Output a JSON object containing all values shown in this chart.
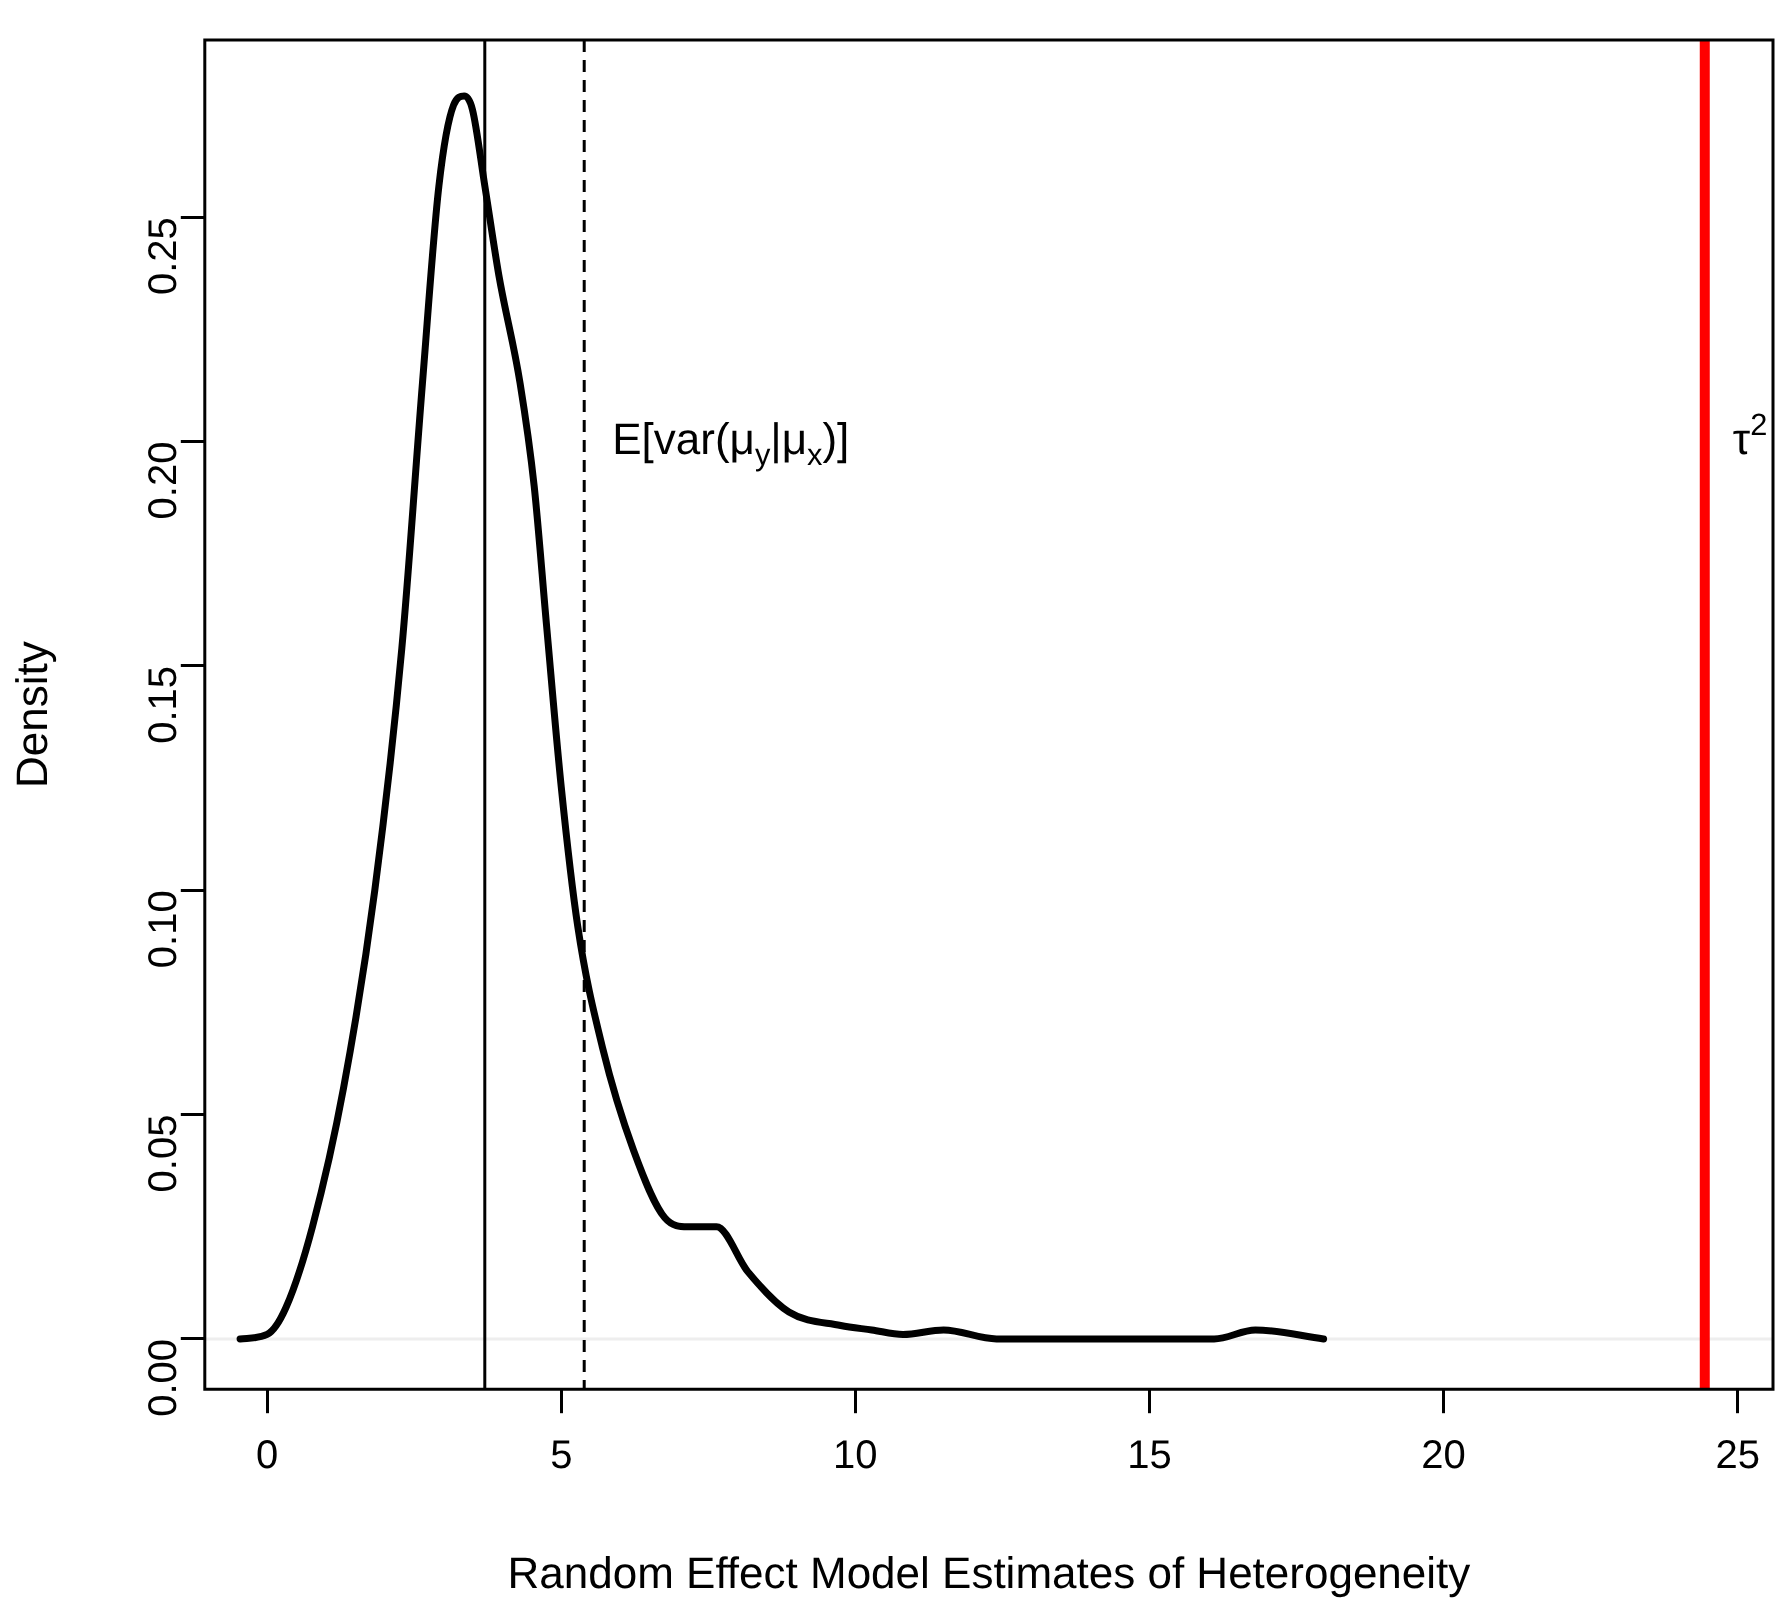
{
  "chart_data": {
    "type": "line",
    "xlabel": "Random Effect Model Estimates of Heterogeneity",
    "ylabel": "Density",
    "xlim": [
      -1.06,
      25.6
    ],
    "ylim": [
      -0.0112,
      0.2895
    ],
    "xticks": [
      0,
      5,
      10,
      15,
      20,
      25
    ],
    "yticks": [
      {
        "value": 0,
        "label": "0.00"
      },
      {
        "value": 0.05,
        "label": "0.05"
      },
      {
        "value": 0.1,
        "label": "0.10"
      },
      {
        "value": 0.15,
        "label": "0.15"
      },
      {
        "value": 0.2,
        "label": "0.20"
      },
      {
        "value": 0.25,
        "label": "0.25"
      }
    ],
    "grid": false,
    "legend": false,
    "marker": "none",
    "line_style": "solid",
    "series": [
      {
        "color": "#000000",
        "x": [
          -0.46,
          0,
          0.32,
          0.77,
          1.3,
          1.83,
          2.29,
          2.64,
          2.92,
          3.17,
          3.35,
          3.49,
          3.7,
          3.94,
          4.3,
          4.54,
          4.75,
          5.0,
          5.28,
          5.7,
          6.23,
          6.76,
          7.15,
          7.64,
          8.17,
          8.87,
          9.75,
          10.28,
          10.81,
          11.5,
          12.4,
          16.1,
          16.8,
          17.96
        ],
        "values": [
          0,
          0.001,
          0.007,
          0.025,
          0.056,
          0.1,
          0.154,
          0.213,
          0.257,
          0.275,
          0.277,
          0.274,
          0.257,
          0.237,
          0.213,
          0.19,
          0.159,
          0.123,
          0.092,
          0.065,
          0.042,
          0.027,
          0.025,
          0.025,
          0.015,
          0.006,
          0.003,
          0.002,
          0.001,
          0.002,
          0,
          0,
          0.002,
          0
        ]
      }
    ],
    "ref_lines": [
      {
        "axis": "y",
        "value": 0,
        "color": "#eeeeee",
        "line_style": "solid"
      },
      {
        "axis": "x",
        "value": 3.7,
        "color": "#000000",
        "line_style": "solid"
      },
      {
        "axis": "x",
        "value": 5.39,
        "color": "#000000",
        "line_style": "dashed",
        "label": "E[var(μ$_{y}$|μ$_{x}$)]"
      },
      {
        "axis": "x",
        "value": 24.44,
        "color": "#ff0000",
        "line_style": "solid",
        "label": "τ$^{2}$"
      }
    ]
  }
}
